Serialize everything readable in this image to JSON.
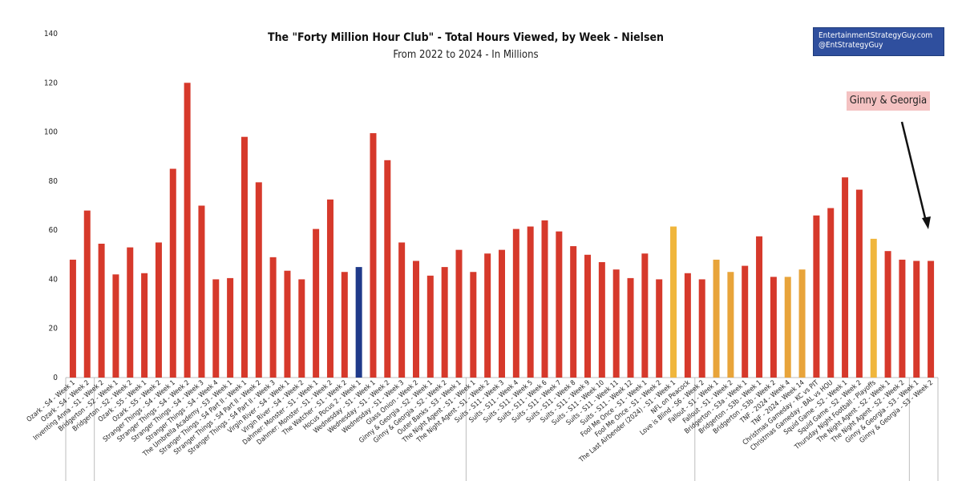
{
  "credit": {
    "line1": "EntertainmentStrategyGuy.com",
    "line2": "@EntStrategyGuy"
  },
  "annotation": "Ginny & Georgia",
  "chart_data": {
    "type": "bar",
    "title": "The \"Forty Million Hour Club\" - Total Hours Viewed, by Week - Nielsen",
    "subtitle": "From 2022 to 2024 - In Millions",
    "ylim": [
      0,
      140
    ],
    "yticks": [
      0,
      20,
      40,
      60,
      80,
      100,
      120,
      140
    ],
    "grid": false,
    "colors": {
      "red": "#d6392b",
      "navy": "#1f3a8a",
      "gold": "#f0b63c",
      "orange": "#e8a43a"
    },
    "categories": [
      "Ozark - S4 - Week 1",
      "Ozark - S4 - Week 2",
      "Inventing Anna - S1 - Week 2",
      "Bridgerton - S2 - Week 1",
      "Bridgerton - S2 - Week 2",
      "Ozark - S5 - Week 1",
      "Ozark - S5 - Week 2",
      "Stranger Things - S4 - Week 1",
      "Stranger Things - S4 - Week 2",
      "Stranger Things - S4 - Week 3",
      "Stranger Things - S4 - Week 4",
      "The Umbrella Academy - S3 - Week 1",
      "Stranger Things - S4 Part II - Week 1",
      "Stranger Things - S4 Part II - Week 2",
      "Stranger Things - S4 Part II - Week 3",
      "Virgin River - S4 - Week 1",
      "Virgin River - S4 - Week 2",
      "Dahmer: Monster - S1 - Week 1",
      "Dahmer: Monster - S1 - Week 2",
      "The Watcher - S1 - Week 2",
      "Hocus Pocus 2 - Week 1",
      "Wednesday - S1 - Week 1",
      "Wednesday - S1 - Week 2",
      "Wednesday - S1 - Week 3",
      "Glass Onion - Week 2",
      "Ginny & Georgia - S2 - Week 1",
      "Ginny & Georgia - S2 - Week 2",
      "Outer Banks - S3 - Week 1",
      "The Night Agent - S1 - Week 1",
      "The Night Agent - S1 - Week 2",
      "Suits - S11 - Week 3",
      "Suits - S11 - Week 4",
      "Suits - S11 - Week 5",
      "Suits - S11 - Week 6",
      "Suits - S11 - Week 7",
      "Suits - S11 - Week 8",
      "Suits - S11 - Week 9",
      "Suits - S11 - Week 10",
      "Suits - S11 - Week 11",
      "Suits - S11 - Week 12",
      "Fool Me Once - S1 - Week 1",
      "Fool Me Once - S1 - Week 2",
      "The Last Airbender (2024) - S1 - Week 1",
      "NFL on Peacock",
      "Love is Blind - S6 - Week 2",
      "Fallout - S1 - Week 1",
      "Fallout - S1 - Week 2",
      "Bridgerton - S3a - Week 1",
      "Bridgerton - S3b - Week 1",
      "Bridgerton - S3b - Week 2",
      "TNF - 2024 - Week 4",
      "TNF - 2024 - Week 14",
      "Christmas Gameday - KC vs PIT",
      "Christmas Gameday - BAL vs HOU",
      "Squid Game - S2 - Week 1",
      "Squid Game - S2 - Week 2",
      "Thursday Night Football - Playoffs",
      "The Night Agent - S2 - Week 1",
      "The Night Agent - S2 - Week 2",
      "Ginny & Georgia - S3 - Week 1",
      "Ginny & Georgia - S3 - Week 2"
    ],
    "values": [
      48,
      68,
      54.5,
      42,
      53,
      42.5,
      55,
      85,
      120,
      70,
      40,
      40.5,
      98,
      79.5,
      49,
      43.5,
      40,
      60.5,
      72.5,
      43,
      45,
      99.5,
      88.5,
      55,
      47.5,
      41.5,
      45,
      52,
      43,
      50.5,
      52,
      60.5,
      61.5,
      64,
      59.5,
      53.5,
      50,
      47,
      44,
      40.5,
      50.5,
      40,
      61.5,
      42.5,
      40,
      48,
      43,
      45.5,
      57.5,
      41,
      41,
      44,
      66,
      69,
      81.5,
      76.5,
      56.5,
      51.5,
      48,
      47.5,
      47.5
    ],
    "bar_colors": [
      "red",
      "red",
      "red",
      "red",
      "red",
      "red",
      "red",
      "red",
      "red",
      "red",
      "red",
      "red",
      "red",
      "red",
      "red",
      "red",
      "red",
      "red",
      "red",
      "red",
      "navy",
      "red",
      "red",
      "red",
      "red",
      "red",
      "red",
      "red",
      "red",
      "red",
      "red",
      "red",
      "red",
      "red",
      "red",
      "red",
      "red",
      "red",
      "red",
      "red",
      "red",
      "red",
      "gold",
      "red",
      "red",
      "orange",
      "orange",
      "red",
      "red",
      "red",
      "orange",
      "orange",
      "red",
      "red",
      "red",
      "red",
      "gold",
      "red",
      "red",
      "red",
      "red"
    ],
    "group_dividers_after": [
      1,
      27,
      43,
      58
    ]
  }
}
